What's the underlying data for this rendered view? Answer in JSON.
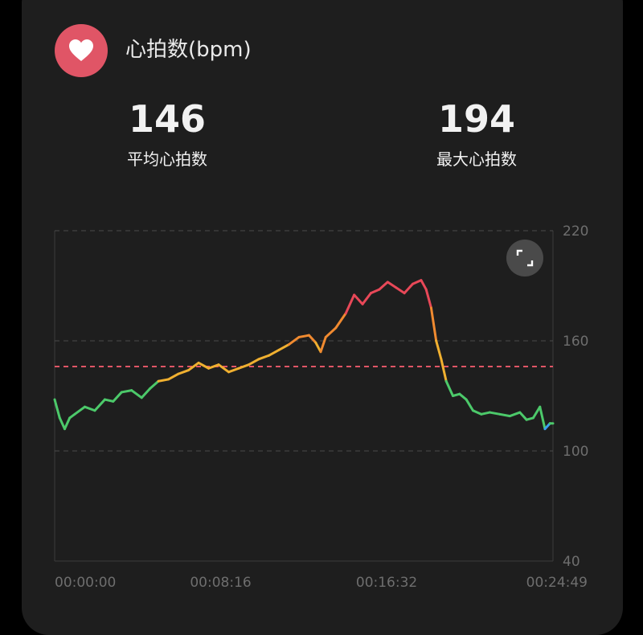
{
  "header": {
    "title": "心拍数(bpm)",
    "icon": "heart-icon"
  },
  "stats": {
    "average": {
      "value": "146",
      "label": "平均心拍数"
    },
    "max": {
      "value": "194",
      "label": "最大心拍数"
    }
  },
  "colors": {
    "background": "#1e1e1e",
    "badge": "#e05566",
    "reference_line": "#e05566",
    "zone_blue": "#3aa0f0",
    "zone_green": "#4cc96a",
    "zone_yellow": "#f0b030",
    "zone_orange": "#f08a30",
    "zone_red": "#e84858"
  },
  "chart_data": {
    "type": "line",
    "title": "心拍数(bpm)",
    "x_ticks": [
      "00:00:00",
      "00:08:16",
      "00:16:32",
      "00:24:49"
    ],
    "y_ticks": [
      220,
      160,
      100,
      40
    ],
    "ylim": [
      40,
      220
    ],
    "xlim_seconds": [
      0,
      1489
    ],
    "grid": "dashed horizontal",
    "reference_line": {
      "value": 146,
      "label": "平均心拍数"
    },
    "points": [
      [
        0,
        128
      ],
      [
        15,
        118
      ],
      [
        30,
        112
      ],
      [
        45,
        118
      ],
      [
        60,
        120
      ],
      [
        90,
        124
      ],
      [
        120,
        122
      ],
      [
        150,
        128
      ],
      [
        175,
        127
      ],
      [
        200,
        132
      ],
      [
        230,
        133
      ],
      [
        260,
        129
      ],
      [
        285,
        134
      ],
      [
        310,
        138
      ],
      [
        340,
        139
      ],
      [
        370,
        142
      ],
      [
        400,
        144
      ],
      [
        430,
        148
      ],
      [
        460,
        145
      ],
      [
        490,
        147
      ],
      [
        520,
        143
      ],
      [
        550,
        145
      ],
      [
        580,
        147
      ],
      [
        610,
        150
      ],
      [
        640,
        152
      ],
      [
        670,
        155
      ],
      [
        700,
        158
      ],
      [
        730,
        162
      ],
      [
        760,
        163
      ],
      [
        780,
        159
      ],
      [
        795,
        154
      ],
      [
        810,
        162
      ],
      [
        840,
        167
      ],
      [
        870,
        175
      ],
      [
        895,
        185
      ],
      [
        920,
        180
      ],
      [
        945,
        186
      ],
      [
        970,
        188
      ],
      [
        995,
        192
      ],
      [
        1020,
        189
      ],
      [
        1045,
        186
      ],
      [
        1070,
        191
      ],
      [
        1095,
        193
      ],
      [
        1110,
        188
      ],
      [
        1125,
        178
      ],
      [
        1140,
        160
      ],
      [
        1155,
        150
      ],
      [
        1170,
        138
      ],
      [
        1190,
        130
      ],
      [
        1210,
        131
      ],
      [
        1230,
        128
      ],
      [
        1250,
        122
      ],
      [
        1275,
        120
      ],
      [
        1300,
        121
      ],
      [
        1330,
        120
      ],
      [
        1360,
        119
      ],
      [
        1390,
        121
      ],
      [
        1410,
        117
      ],
      [
        1430,
        118
      ],
      [
        1450,
        124
      ],
      [
        1465,
        112
      ],
      [
        1480,
        115
      ],
      [
        1489,
        115
      ]
    ]
  }
}
